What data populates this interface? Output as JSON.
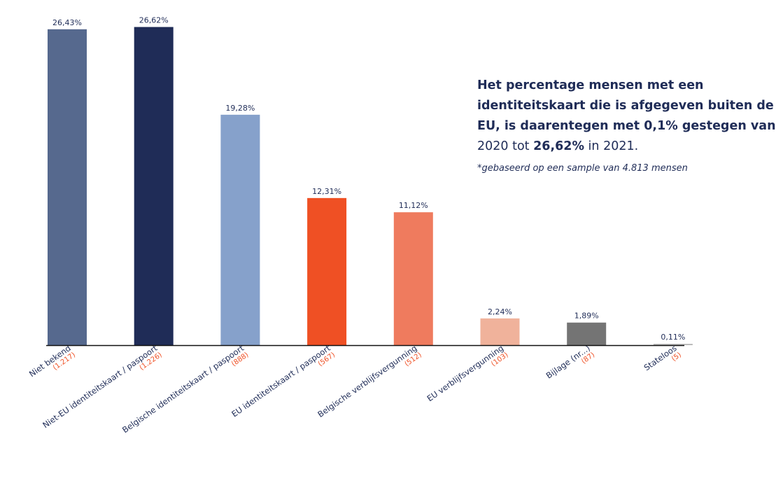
{
  "chart_data": {
    "type": "bar",
    "categories": [
      "Niet bekend",
      "Niet-EU identiteitskaart / paspoort",
      "Belgische identiteitskaart / paspoort",
      "EU identiteitskaart / paspoort",
      "Belgische verblijfsvergunning",
      "EU verblijfsvergunning",
      "Bijlage (nr...)",
      "Stateloos"
    ],
    "values": [
      26.43,
      26.62,
      19.28,
      12.31,
      11.12,
      2.24,
      1.89,
      0.11
    ],
    "value_labels": [
      "26,43%",
      "26,62%",
      "19,28%",
      "12,31%",
      "11,12%",
      "2,24%",
      "1,89%",
      "0,11%"
    ],
    "counts": [
      "(1.217)",
      "(1.226)",
      "(888)",
      "(567)",
      "(512)",
      "(103)",
      "(87)",
      "(5)"
    ],
    "colors": [
      "#56698e",
      "#1f2c57",
      "#86a1cb",
      "#ef5024",
      "#ef7b5e",
      "#f0b29b",
      "#747474",
      "#b8b8b8"
    ],
    "ylim": [
      0,
      28
    ],
    "grid": false
  },
  "annotation": {
    "line1": "Het percentage mensen met een",
    "line2": "identiteitskaart die is afgegeven buiten de",
    "line3": "EU, is daarentegen met 0,1% gestegen van",
    "line4_start": "2020 tot ",
    "line4_bold": "26,62%",
    "line4_end": " in 2021.",
    "note": "*gebaseerd op een sample van 4.813 mensen"
  },
  "colors": {
    "text": "#1f2c57",
    "count": "#ef5024",
    "axis": "#111111"
  }
}
